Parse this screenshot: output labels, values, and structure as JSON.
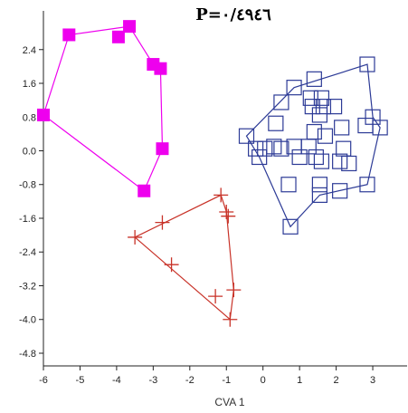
{
  "chart_data": {
    "type": "scatter",
    "title": "P=٠/٤٩٤٦",
    "xlabel": "CVA 1",
    "ylabel": "",
    "xlim": [
      -6,
      4
    ],
    "ylim": [
      -5,
      3.2
    ],
    "grid": false,
    "x_ticks": [
      -6,
      -5,
      -4,
      -3,
      -2,
      -1,
      0,
      1,
      2,
      3
    ],
    "x_tick_labels": [
      "-6",
      "-5",
      "-4",
      "-3",
      "-2",
      "-1",
      "0",
      "1",
      "2",
      "3"
    ],
    "y_ticks": [
      2.4,
      1.6,
      0.8,
      0.0,
      -0.8,
      -1.6,
      -2.4,
      -3.2,
      -4.0,
      -4.8
    ],
    "y_tick_labels": [
      "2.4",
      "1.6",
      "0.8",
      "0.0",
      "-0.8",
      "-1.6",
      "-2.4",
      "-3.2",
      "-4.0",
      "-4.8"
    ],
    "series": [
      {
        "marker": "filled-square",
        "color": "#ee00ee",
        "points": [
          [
            -5.3,
            2.75
          ],
          [
            -3.65,
            2.95
          ],
          [
            -3.95,
            2.7
          ],
          [
            -3.0,
            2.05
          ],
          [
            -2.8,
            1.95
          ],
          [
            -6.0,
            0.85
          ],
          [
            -2.75,
            0.05
          ],
          [
            -3.25,
            -0.95
          ]
        ],
        "hull": [
          [
            -6.0,
            0.85
          ],
          [
            -5.3,
            2.75
          ],
          [
            -3.65,
            2.95
          ],
          [
            -3.0,
            2.05
          ],
          [
            -2.8,
            1.95
          ],
          [
            -2.75,
            0.05
          ],
          [
            -3.25,
            -0.95
          ]
        ]
      },
      {
        "marker": "plus",
        "color": "#c83228",
        "points": [
          [
            -3.5,
            -2.05
          ],
          [
            -2.75,
            -1.7
          ],
          [
            -2.5,
            -2.7
          ],
          [
            -1.15,
            -1.05
          ],
          [
            -1.0,
            -1.45
          ],
          [
            -0.95,
            -1.55
          ],
          [
            -1.3,
            -3.45
          ],
          [
            -0.8,
            -3.3
          ],
          [
            -0.9,
            -4.0
          ]
        ],
        "hull": [
          [
            -3.5,
            -2.05
          ],
          [
            -1.15,
            -1.05
          ],
          [
            -1.0,
            -1.45
          ],
          [
            -0.8,
            -3.3
          ],
          [
            -0.9,
            -4.0
          ]
        ]
      },
      {
        "marker": "open-square",
        "color": "#2c3a96",
        "points": [
          [
            2.85,
            2.05
          ],
          [
            1.4,
            1.7
          ],
          [
            0.85,
            1.5
          ],
          [
            1.3,
            1.25
          ],
          [
            1.6,
            1.25
          ],
          [
            0.5,
            1.15
          ],
          [
            1.35,
            1.05
          ],
          [
            1.65,
            1.05
          ],
          [
            1.95,
            1.05
          ],
          [
            1.55,
            0.85
          ],
          [
            3.0,
            0.8
          ],
          [
            -0.45,
            0.35
          ],
          [
            2.8,
            0.6
          ],
          [
            3.2,
            0.55
          ],
          [
            0.35,
            0.65
          ],
          [
            2.15,
            0.55
          ],
          [
            1.4,
            0.45
          ],
          [
            1.7,
            0.35
          ],
          [
            -0.2,
            0.05
          ],
          [
            0.05,
            0.05
          ],
          [
            0.3,
            0.1
          ],
          [
            0.5,
            0.05
          ],
          [
            0.85,
            0.1
          ],
          [
            1.25,
            0.1
          ],
          [
            2.2,
            0.05
          ],
          [
            -0.1,
            -0.15
          ],
          [
            1.0,
            -0.15
          ],
          [
            1.45,
            -0.15
          ],
          [
            1.6,
            -0.25
          ],
          [
            2.1,
            -0.25
          ],
          [
            2.35,
            -0.3
          ],
          [
            0.7,
            -0.8
          ],
          [
            1.55,
            -0.8
          ],
          [
            2.1,
            -0.95
          ],
          [
            2.85,
            -0.8
          ],
          [
            1.55,
            -1.05
          ],
          [
            0.75,
            -1.8
          ]
        ],
        "hull": [
          [
            -0.45,
            0.35
          ],
          [
            0.85,
            1.5
          ],
          [
            2.85,
            2.05
          ],
          [
            3.0,
            0.8
          ],
          [
            3.2,
            0.55
          ],
          [
            2.85,
            -0.8
          ],
          [
            1.55,
            -1.05
          ],
          [
            0.75,
            -1.8
          ],
          [
            -0.1,
            -0.15
          ]
        ]
      }
    ]
  }
}
